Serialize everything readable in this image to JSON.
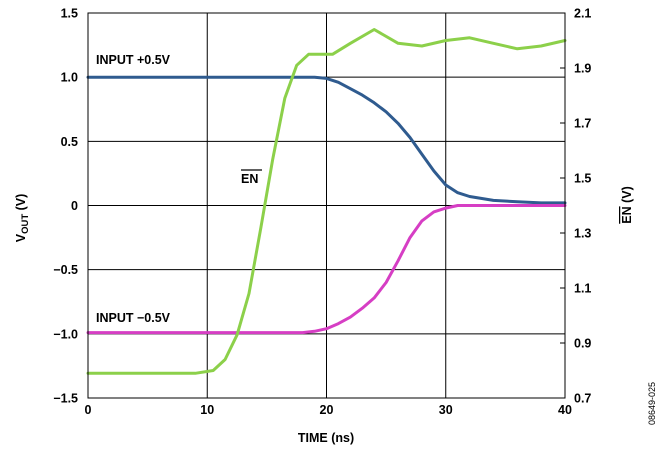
{
  "chart_data": {
    "type": "line",
    "xlabel": "TIME (ns)",
    "ylabel": "VOUT (V)",
    "ylabel_main": "V",
    "ylabel_sub": "OUT",
    "ylabel_unit": " (V)",
    "y2label": "EN (V)",
    "y2label_bar": "EN",
    "y2label_unit": " (V)",
    "xlim": [
      0,
      40
    ],
    "ylim": [
      -1.5,
      1.5
    ],
    "y2lim": [
      0.7,
      2.1
    ],
    "grid": true,
    "x_ticks": [
      "0",
      "10",
      "20",
      "30",
      "40"
    ],
    "y_ticks": [
      "1.5",
      "1.0",
      "0.5",
      "0",
      "−0.5",
      "−1.0",
      "−1.5"
    ],
    "y2_ticks": [
      "2.1",
      "1.9",
      "1.7",
      "1.5",
      "1.3",
      "1.1",
      "0.9",
      "0.7"
    ],
    "series": [
      {
        "name": "INPUT +0.5V",
        "axis": "left",
        "color": "#2f5b8f",
        "x": [
          0,
          5,
          10,
          15,
          18,
          19,
          20,
          21,
          22,
          23,
          24,
          25,
          26,
          27,
          28,
          29,
          30,
          31,
          32,
          34,
          36,
          38,
          40
        ],
        "y": [
          1.0,
          1.0,
          1.0,
          1.0,
          1.0,
          1.0,
          0.99,
          0.96,
          0.91,
          0.86,
          0.8,
          0.73,
          0.64,
          0.53,
          0.4,
          0.27,
          0.16,
          0.1,
          0.07,
          0.04,
          0.03,
          0.02,
          0.02
        ]
      },
      {
        "name": "INPUT −0.5V",
        "axis": "left",
        "color": "#d63ec4",
        "x": [
          0,
          5,
          10,
          15,
          18,
          19,
          20,
          21,
          22,
          23,
          24,
          25,
          26,
          27,
          28,
          29,
          30,
          31,
          32,
          34,
          36,
          38,
          40
        ],
        "y": [
          -0.99,
          -0.99,
          -0.99,
          -0.99,
          -0.99,
          -0.98,
          -0.96,
          -0.92,
          -0.87,
          -0.8,
          -0.72,
          -0.6,
          -0.43,
          -0.25,
          -0.12,
          -0.05,
          -0.02,
          0.0,
          0.0,
          0.0,
          0.0,
          0.0,
          0.0
        ]
      },
      {
        "name": "EN",
        "axis": "right",
        "color": "#8cd04a",
        "x": [
          0,
          5,
          9,
          10.5,
          11.5,
          12.5,
          13.5,
          14.5,
          15.5,
          16.5,
          17.5,
          18.5,
          19.5,
          20.5,
          22,
          24,
          26,
          28,
          30,
          32,
          34,
          36,
          38,
          40
        ],
        "y": [
          0.79,
          0.79,
          0.79,
          0.8,
          0.84,
          0.93,
          1.08,
          1.32,
          1.57,
          1.79,
          1.91,
          1.95,
          1.95,
          1.95,
          1.99,
          2.04,
          1.99,
          1.98,
          2.0,
          2.01,
          1.99,
          1.97,
          1.98,
          2.0
        ]
      }
    ],
    "annotations": [
      "INPUT +0.5V",
      "INPUT −0.5V",
      "EN"
    ],
    "figure_id": "08649-025"
  }
}
